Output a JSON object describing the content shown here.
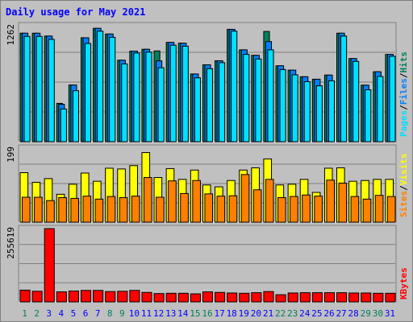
{
  "title": "Daily usage for May 2021",
  "chart_data": {
    "type": "bar",
    "title": "Daily usage for May 2021",
    "categories": [
      "1",
      "2",
      "3",
      "4",
      "5",
      "6",
      "7",
      "8",
      "9",
      "10",
      "11",
      "12",
      "13",
      "14",
      "15",
      "16",
      "17",
      "18",
      "19",
      "20",
      "21",
      "22",
      "23",
      "24",
      "25",
      "26",
      "27",
      "28",
      "29",
      "30",
      "31"
    ],
    "weekend_days": [
      "1",
      "2",
      "8",
      "9",
      "15",
      "16",
      "22",
      "23",
      "29",
      "30"
    ],
    "panels": [
      {
        "id": "pages-files-hits",
        "max_label": "1262",
        "ylim": [
          0,
          1262
        ],
        "series": [
          {
            "name": "Hits",
            "color": "#00805c",
            "values": [
              1181,
              1181,
              1150,
              417,
              617,
              1131,
              1234,
              1172,
              887,
              986,
              1006,
              988,
              1081,
              1072,
              737,
              837,
              881,
              1223,
              1000,
              940,
              1200,
              826,
              779,
              707,
              680,
              725,
              1181,
              905,
              615,
              761,
              950
            ]
          },
          {
            "name": "Files",
            "color": "#0080ff",
            "values": [
              1181,
              1181,
              1150,
              407,
              617,
              1131,
              1234,
              1172,
              887,
              986,
              1006,
              880,
              1081,
              1072,
              737,
              837,
              881,
              1223,
              1000,
              940,
              1090,
              826,
              779,
              707,
              680,
              725,
              1181,
              905,
              615,
              761,
              950
            ]
          },
          {
            "name": "Pages",
            "color": "#00e0ff",
            "values": [
              1146,
              1146,
              1114,
              356,
              555,
              1069,
              1203,
              1136,
              847,
              965,
              975,
              805,
              1050,
              1040,
              695,
              795,
              860,
              1203,
              950,
              900,
              1000,
              785,
              728,
              654,
              608,
              663,
              1150,
              874,
              565,
              710,
              930
            ]
          }
        ]
      },
      {
        "id": "visits-sites",
        "max_label": "199",
        "ylim": [
          0,
          199
        ],
        "series": [
          {
            "name": "Visits",
            "color": "#ffff00",
            "values": [
              133,
              107,
              117,
              75,
              102,
              132,
              110,
              145,
              143,
              152,
              187,
              120,
              144,
              115,
              140,
              100,
              95,
              112,
              140,
              146,
              170,
              100,
              102,
              115,
              80,
              145,
              146,
              110,
              112,
              115,
              115
            ]
          },
          {
            "name": "Sites",
            "color": "#ff8000",
            "values": [
              67,
              67,
              58,
              66,
              64,
              70,
              62,
              69,
              66,
              70,
              120,
              67,
              111,
              77,
              112,
              76,
              70,
              71,
              128,
              87,
              115,
              66,
              69,
              73,
              70,
              113,
              105,
              69,
              62,
              72,
              69
            ]
          }
        ]
      },
      {
        "id": "kbytes",
        "max_label": "255619",
        "ylim": [
          0,
          255619
        ],
        "series": [
          {
            "name": "KBytes",
            "color": "#ff0000",
            "values": [
              41000,
              37000,
              255619,
              35000,
              38000,
              40000,
              40000,
              36000,
              37000,
              40000,
              33000,
              29000,
              30000,
              30000,
              28000,
              35000,
              33000,
              31000,
              30000,
              32000,
              36000,
              25000,
              31000,
              32000,
              32000,
              32000,
              32000,
              31000,
              31000,
              30000,
              30000
            ]
          }
        ]
      }
    ],
    "legend_right": [
      "Pages",
      "/",
      "Files",
      "/",
      "Hits",
      "Sites",
      "/",
      "Visits",
      "KBytes"
    ]
  },
  "colors": {
    "title": "#0000ff",
    "weekday": "#0000ff",
    "weekend": "#00805c",
    "slash": "#000000"
  }
}
